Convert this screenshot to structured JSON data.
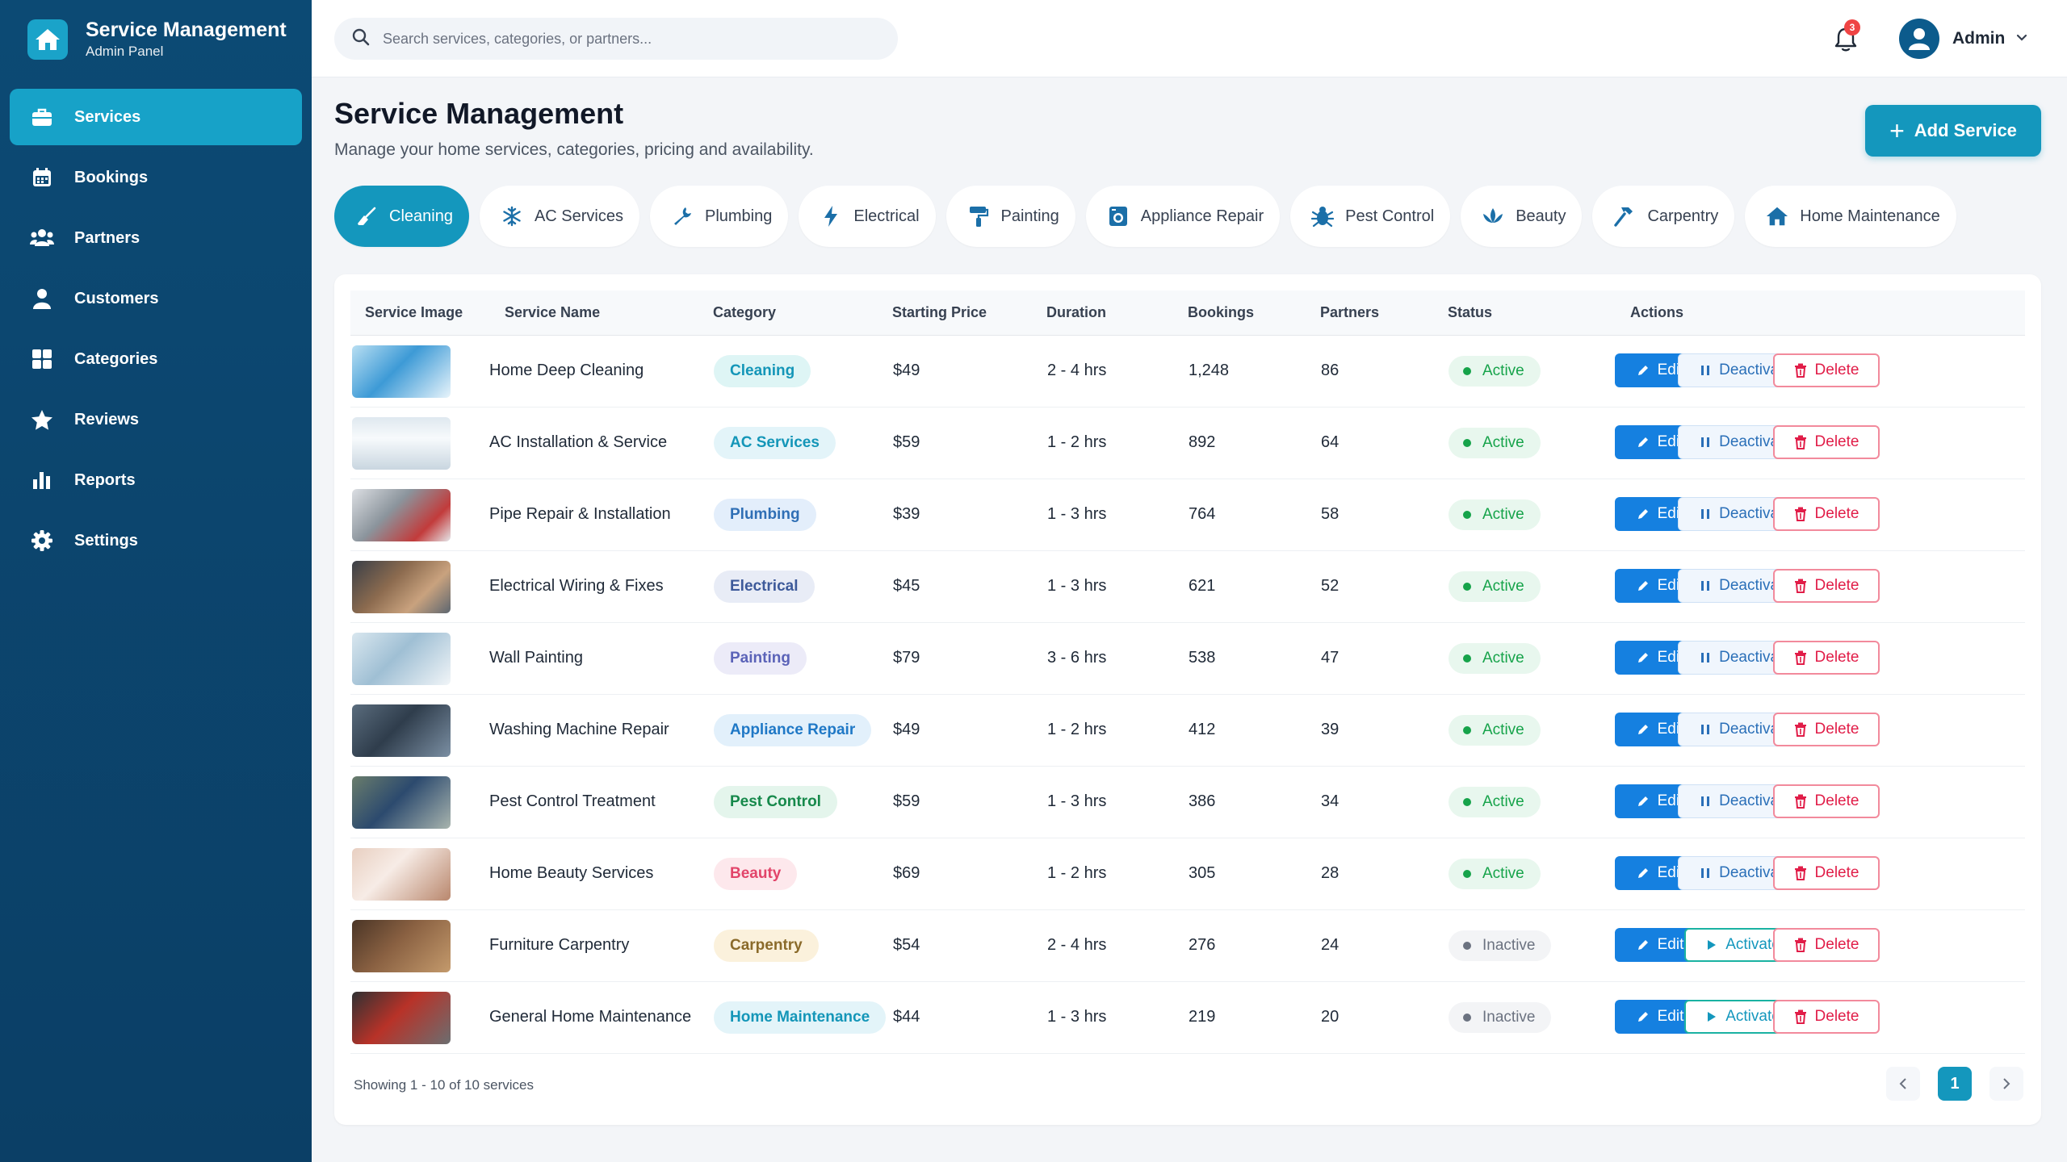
{
  "app": {
    "title": "Service Management",
    "subtitle": "Admin Panel"
  },
  "sidebar": {
    "items": [
      {
        "label": "Services",
        "icon": "briefcase-icon",
        "active": true
      },
      {
        "label": "Bookings",
        "icon": "calendar-icon",
        "active": false
      },
      {
        "label": "Partners",
        "icon": "users-icon",
        "active": false
      },
      {
        "label": "Customers",
        "icon": "user-icon",
        "active": false
      },
      {
        "label": "Categories",
        "icon": "grid-icon",
        "active": false
      },
      {
        "label": "Reviews",
        "icon": "star-icon",
        "active": false
      },
      {
        "label": "Reports",
        "icon": "bar-chart-icon",
        "active": false
      },
      {
        "label": "Settings",
        "icon": "gear-icon",
        "active": false
      }
    ]
  },
  "topbar": {
    "search_placeholder": "Search services, categories, or partners...",
    "notification_count": "3",
    "user_name": "Admin"
  },
  "header": {
    "title": "Service Management",
    "subtitle": "Manage your home services, categories, pricing and availability.",
    "add_button": "Add Service"
  },
  "categories": [
    {
      "label": "Cleaning",
      "icon": "broom-icon",
      "active": true
    },
    {
      "label": "AC Services",
      "icon": "snowflake-icon",
      "active": false
    },
    {
      "label": "Plumbing",
      "icon": "wrench-icon",
      "active": false
    },
    {
      "label": "Electrical",
      "icon": "bolt-icon",
      "active": false
    },
    {
      "label": "Painting",
      "icon": "paint-roller-icon",
      "active": false
    },
    {
      "label": "Appliance Repair",
      "icon": "washing-machine-icon",
      "active": false
    },
    {
      "label": "Pest Control",
      "icon": "bug-icon",
      "active": false
    },
    {
      "label": "Beauty",
      "icon": "lotus-icon",
      "active": false
    },
    {
      "label": "Carpentry",
      "icon": "hammer-icon",
      "active": false
    },
    {
      "label": "Home Maintenance",
      "icon": "home-icon",
      "active": false
    }
  ],
  "table": {
    "columns": [
      "Service Image",
      "Service Name",
      "Category",
      "Starting Price",
      "Duration",
      "Bookings",
      "Partners",
      "Status",
      "Actions"
    ],
    "rows": [
      {
        "name": "Home Deep Cleaning",
        "category": "Cleaning",
        "price": "$49",
        "duration": "2 - 4 hrs",
        "bookings": "1,248",
        "partners": "86",
        "status": "Active",
        "toggle": "Deactivate",
        "image": "cleaning-photo"
      },
      {
        "name": "AC Installation & Service",
        "category": "AC Services",
        "price": "$59",
        "duration": "1 - 2 hrs",
        "bookings": "892",
        "partners": "64",
        "status": "Active",
        "toggle": "Deactivate",
        "image": "ac-unit-photo"
      },
      {
        "name": "Pipe Repair & Installation",
        "category": "Plumbing",
        "price": "$39",
        "duration": "1 - 3 hrs",
        "bookings": "764",
        "partners": "58",
        "status": "Active",
        "toggle": "Deactivate",
        "image": "plumbing-photo"
      },
      {
        "name": "Electrical Wiring & Fixes",
        "category": "Electrical",
        "price": "$45",
        "duration": "1 - 3 hrs",
        "bookings": "621",
        "partners": "52",
        "status": "Active",
        "toggle": "Deactivate",
        "image": "electrical-photo"
      },
      {
        "name": "Wall Painting",
        "category": "Painting",
        "price": "$79",
        "duration": "3 - 6 hrs",
        "bookings": "538",
        "partners": "47",
        "status": "Active",
        "toggle": "Deactivate",
        "image": "painting-photo"
      },
      {
        "name": "Washing Machine Repair",
        "category": "Appliance Repair",
        "price": "$49",
        "duration": "1 - 2 hrs",
        "bookings": "412",
        "partners": "39",
        "status": "Active",
        "toggle": "Deactivate",
        "image": "washer-photo"
      },
      {
        "name": "Pest Control Treatment",
        "category": "Pest Control",
        "price": "$59",
        "duration": "1 - 3 hrs",
        "bookings": "386",
        "partners": "34",
        "status": "Active",
        "toggle": "Deactivate",
        "image": "pest-photo"
      },
      {
        "name": "Home Beauty Services",
        "category": "Beauty",
        "price": "$69",
        "duration": "1 - 2 hrs",
        "bookings": "305",
        "partners": "28",
        "status": "Active",
        "toggle": "Deactivate",
        "image": "beauty-photo"
      },
      {
        "name": "Furniture Carpentry",
        "category": "Carpentry",
        "price": "$54",
        "duration": "2 - 4 hrs",
        "bookings": "276",
        "partners": "24",
        "status": "Inactive",
        "toggle": "Activate",
        "image": "carpentry-photo"
      },
      {
        "name": "General Home Maintenance",
        "category": "Home Maintenance",
        "price": "$44",
        "duration": "1 - 3 hrs",
        "bookings": "219",
        "partners": "20",
        "status": "Inactive",
        "toggle": "Activate",
        "image": "maintenance-photo"
      }
    ],
    "edit_label": "Edit",
    "delete_label": "Delete"
  },
  "category_colors": {
    "Cleaning": {
      "bg": "#def5f5",
      "fg": "#1496b8"
    },
    "AC Services": {
      "bg": "#e3f4f9",
      "fg": "#1496b8"
    },
    "Plumbing": {
      "bg": "#e3eefb",
      "fg": "#2f6fb5"
    },
    "Electrical": {
      "bg": "#e8ecf6",
      "fg": "#3d5a9a"
    },
    "Painting": {
      "bg": "#ecebf8",
      "fg": "#5b63b8"
    },
    "Appliance Repair": {
      "bg": "#e2f0fb",
      "fg": "#1f78c6"
    },
    "Pest Control": {
      "bg": "#e4f5ec",
      "fg": "#16894b"
    },
    "Beauty": {
      "bg": "#fde8ec",
      "fg": "#e2456a"
    },
    "Carpentry": {
      "bg": "#fbf1dc",
      "fg": "#8a6a2a"
    },
    "Home Maintenance": {
      "bg": "#e3f4f9",
      "fg": "#1496b8"
    }
  },
  "pagination": {
    "summary": "Showing 1 - 10 of 10 services",
    "current_page": "1"
  }
}
